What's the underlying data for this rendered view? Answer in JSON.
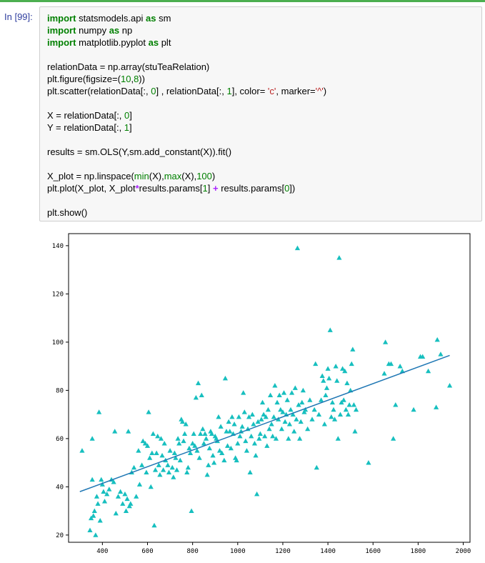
{
  "prompt": "In [99]:",
  "code_lines": [
    [
      {
        "t": "import",
        "c": "kw"
      },
      {
        "t": " statsmodels.api "
      },
      {
        "t": "as",
        "c": "kw"
      },
      {
        "t": " sm"
      }
    ],
    [
      {
        "t": "import",
        "c": "kw"
      },
      {
        "t": " numpy "
      },
      {
        "t": "as",
        "c": "kw"
      },
      {
        "t": " np"
      }
    ],
    [
      {
        "t": "import",
        "c": "kw"
      },
      {
        "t": " matplotlib.pyplot "
      },
      {
        "t": "as",
        "c": "kw"
      },
      {
        "t": " plt"
      }
    ],
    [],
    [
      {
        "t": "relationData = np.array(stuTeaRelation)"
      }
    ],
    [
      {
        "t": "plt.figure(figsize=("
      },
      {
        "t": "10",
        "c": "num"
      },
      {
        "t": ","
      },
      {
        "t": "8",
        "c": "num"
      },
      {
        "t": "))"
      }
    ],
    [
      {
        "t": "plt.scatter(relationData[:, "
      },
      {
        "t": "0",
        "c": "num"
      },
      {
        "t": "] , relationData[:, "
      },
      {
        "t": "1",
        "c": "num"
      },
      {
        "t": "], color= "
      },
      {
        "t": "'c'",
        "c": "str"
      },
      {
        "t": ", marker="
      },
      {
        "t": "'^'",
        "c": "str"
      },
      {
        "t": ")"
      }
    ],
    [],
    [
      {
        "t": "X = relationData[:, "
      },
      {
        "t": "0",
        "c": "num"
      },
      {
        "t": "]"
      }
    ],
    [
      {
        "t": "Y = relationData[:, "
      },
      {
        "t": "1",
        "c": "num"
      },
      {
        "t": "]"
      }
    ],
    [],
    [
      {
        "t": "results = sm.OLS(Y,sm.add_constant(X)).fit()"
      }
    ],
    [],
    [
      {
        "t": "X_plot = np.linspace("
      },
      {
        "t": "min",
        "c": "bi"
      },
      {
        "t": "(X),"
      },
      {
        "t": "max",
        "c": "bi"
      },
      {
        "t": "(X),"
      },
      {
        "t": "100",
        "c": "num"
      },
      {
        "t": ")"
      }
    ],
    [
      {
        "t": "plt.plot(X_plot, X_plot"
      },
      {
        "t": "*",
        "c": "op"
      },
      {
        "t": "results.params["
      },
      {
        "t": "1",
        "c": "num"
      },
      {
        "t": "] "
      },
      {
        "t": "+",
        "c": "op"
      },
      {
        "t": " results.params["
      },
      {
        "t": "0",
        "c": "num"
      },
      {
        "t": "])"
      }
    ],
    [],
    [
      {
        "t": "plt.show()"
      }
    ]
  ],
  "chart_data": {
    "type": "scatter",
    "title": "",
    "xlabel": "",
    "ylabel": "",
    "xlim": [
      250,
      2030
    ],
    "ylim": [
      17,
      145
    ],
    "xticks": [
      "400",
      "600",
      "800",
      "1000",
      "1200",
      "1400",
      "1600",
      "1800",
      "2000"
    ],
    "yticks": [
      "20",
      "40",
      "60",
      "80",
      "100",
      "120",
      "140"
    ],
    "grid": false,
    "marker_color": "#17bfbf",
    "line_color": "#1f77b4",
    "fit_line": {
      "x": [
        300,
        1940
      ],
      "y": [
        38,
        94.5
      ]
    },
    "points": [
      [
        310,
        55
      ],
      [
        345,
        22
      ],
      [
        350,
        27
      ],
      [
        355,
        43
      ],
      [
        355,
        60
      ],
      [
        360,
        28
      ],
      [
        365,
        30
      ],
      [
        370,
        20
      ],
      [
        375,
        36
      ],
      [
        380,
        33
      ],
      [
        385,
        71
      ],
      [
        390,
        26
      ],
      [
        395,
        43
      ],
      [
        400,
        41
      ],
      [
        405,
        38
      ],
      [
        410,
        34
      ],
      [
        420,
        37
      ],
      [
        430,
        39
      ],
      [
        440,
        43
      ],
      [
        450,
        42
      ],
      [
        455,
        63
      ],
      [
        460,
        29
      ],
      [
        470,
        36
      ],
      [
        480,
        38
      ],
      [
        490,
        33
      ],
      [
        500,
        37
      ],
      [
        505,
        30
      ],
      [
        510,
        35
      ],
      [
        515,
        63
      ],
      [
        520,
        32
      ],
      [
        525,
        33
      ],
      [
        530,
        46
      ],
      [
        540,
        48
      ],
      [
        550,
        36
      ],
      [
        560,
        55
      ],
      [
        565,
        41
      ],
      [
        575,
        49
      ],
      [
        580,
        59
      ],
      [
        590,
        58
      ],
      [
        595,
        46
      ],
      [
        600,
        57
      ],
      [
        605,
        71
      ],
      [
        610,
        52
      ],
      [
        615,
        40
      ],
      [
        620,
        54
      ],
      [
        625,
        62
      ],
      [
        630,
        24
      ],
      [
        635,
        47
      ],
      [
        640,
        54
      ],
      [
        645,
        61
      ],
      [
        650,
        49
      ],
      [
        655,
        45
      ],
      [
        660,
        60
      ],
      [
        665,
        53
      ],
      [
        670,
        47
      ],
      [
        675,
        58
      ],
      [
        680,
        51
      ],
      [
        690,
        49
      ],
      [
        695,
        46
      ],
      [
        700,
        55
      ],
      [
        710,
        48
      ],
      [
        715,
        44
      ],
      [
        720,
        54
      ],
      [
        725,
        52
      ],
      [
        730,
        47
      ],
      [
        735,
        60
      ],
      [
        740,
        58
      ],
      [
        745,
        51
      ],
      [
        750,
        68
      ],
      [
        755,
        67
      ],
      [
        760,
        59
      ],
      [
        765,
        62
      ],
      [
        770,
        66
      ],
      [
        775,
        46
      ],
      [
        780,
        48
      ],
      [
        785,
        56
      ],
      [
        790,
        54
      ],
      [
        795,
        30
      ],
      [
        800,
        58
      ],
      [
        805,
        62
      ],
      [
        810,
        57
      ],
      [
        815,
        77
      ],
      [
        820,
        55
      ],
      [
        825,
        83
      ],
      [
        830,
        52
      ],
      [
        835,
        62
      ],
      [
        840,
        78
      ],
      [
        845,
        64
      ],
      [
        850,
        58
      ],
      [
        855,
        62
      ],
      [
        860,
        60
      ],
      [
        865,
        45
      ],
      [
        870,
        49
      ],
      [
        875,
        56
      ],
      [
        880,
        63
      ],
      [
        885,
        62
      ],
      [
        890,
        53
      ],
      [
        895,
        50
      ],
      [
        900,
        61
      ],
      [
        905,
        60
      ],
      [
        910,
        59
      ],
      [
        915,
        69
      ],
      [
        920,
        55
      ],
      [
        925,
        65
      ],
      [
        930,
        54
      ],
      [
        940,
        51
      ],
      [
        945,
        85
      ],
      [
        950,
        63
      ],
      [
        955,
        57
      ],
      [
        960,
        67
      ],
      [
        965,
        63
      ],
      [
        970,
        56
      ],
      [
        975,
        69
      ],
      [
        980,
        62
      ],
      [
        985,
        66
      ],
      [
        990,
        52
      ],
      [
        995,
        51
      ],
      [
        1000,
        58
      ],
      [
        1005,
        69
      ],
      [
        1010,
        61
      ],
      [
        1015,
        63
      ],
      [
        1020,
        65
      ],
      [
        1025,
        79
      ],
      [
        1030,
        71
      ],
      [
        1035,
        59
      ],
      [
        1040,
        55
      ],
      [
        1045,
        64
      ],
      [
        1050,
        69
      ],
      [
        1055,
        46
      ],
      [
        1060,
        61
      ],
      [
        1065,
        70
      ],
      [
        1070,
        66
      ],
      [
        1075,
        58
      ],
      [
        1080,
        53
      ],
      [
        1085,
        37
      ],
      [
        1090,
        67
      ],
      [
        1095,
        60
      ],
      [
        1100,
        62
      ],
      [
        1105,
        68
      ],
      [
        1110,
        75
      ],
      [
        1115,
        70
      ],
      [
        1120,
        61
      ],
      [
        1125,
        69
      ],
      [
        1130,
        57
      ],
      [
        1135,
        72
      ],
      [
        1140,
        64
      ],
      [
        1145,
        78
      ],
      [
        1150,
        66
      ],
      [
        1155,
        61
      ],
      [
        1160,
        69
      ],
      [
        1165,
        82
      ],
      [
        1170,
        60
      ],
      [
        1175,
        75
      ],
      [
        1180,
        68
      ],
      [
        1185,
        78
      ],
      [
        1190,
        72
      ],
      [
        1195,
        64
      ],
      [
        1200,
        71
      ],
      [
        1205,
        79
      ],
      [
        1210,
        67
      ],
      [
        1215,
        70
      ],
      [
        1220,
        76
      ],
      [
        1225,
        60
      ],
      [
        1230,
        66
      ],
      [
        1235,
        72
      ],
      [
        1240,
        79
      ],
      [
        1245,
        70
      ],
      [
        1250,
        63
      ],
      [
        1255,
        81
      ],
      [
        1260,
        68
      ],
      [
        1265,
        139
      ],
      [
        1270,
        74
      ],
      [
        1275,
        60
      ],
      [
        1280,
        67
      ],
      [
        1285,
        75
      ],
      [
        1290,
        80
      ],
      [
        1295,
        71
      ],
      [
        1300,
        72
      ],
      [
        1310,
        64
      ],
      [
        1320,
        76
      ],
      [
        1330,
        68
      ],
      [
        1340,
        72
      ],
      [
        1345,
        91
      ],
      [
        1350,
        48
      ],
      [
        1360,
        70
      ],
      [
        1370,
        76
      ],
      [
        1375,
        86
      ],
      [
        1380,
        84
      ],
      [
        1385,
        66
      ],
      [
        1390,
        78
      ],
      [
        1395,
        81
      ],
      [
        1400,
        89
      ],
      [
        1405,
        85
      ],
      [
        1410,
        105
      ],
      [
        1415,
        69
      ],
      [
        1420,
        75
      ],
      [
        1425,
        72
      ],
      [
        1430,
        68
      ],
      [
        1435,
        90
      ],
      [
        1440,
        84
      ],
      [
        1445,
        60
      ],
      [
        1450,
        135
      ],
      [
        1455,
        70
      ],
      [
        1460,
        75
      ],
      [
        1465,
        89
      ],
      [
        1470,
        76
      ],
      [
        1475,
        88
      ],
      [
        1480,
        72
      ],
      [
        1485,
        83
      ],
      [
        1490,
        70
      ],
      [
        1495,
        74
      ],
      [
        1500,
        80
      ],
      [
        1505,
        91
      ],
      [
        1510,
        97
      ],
      [
        1515,
        74
      ],
      [
        1520,
        63
      ],
      [
        1525,
        72
      ],
      [
        1580,
        50
      ],
      [
        1650,
        87
      ],
      [
        1655,
        100
      ],
      [
        1670,
        91
      ],
      [
        1680,
        91
      ],
      [
        1690,
        60
      ],
      [
        1700,
        74
      ],
      [
        1720,
        90
      ],
      [
        1730,
        88
      ],
      [
        1780,
        72
      ],
      [
        1810,
        94
      ],
      [
        1820,
        94
      ],
      [
        1845,
        88
      ],
      [
        1880,
        73
      ],
      [
        1885,
        101
      ],
      [
        1900,
        95
      ],
      [
        1940,
        82
      ]
    ]
  }
}
